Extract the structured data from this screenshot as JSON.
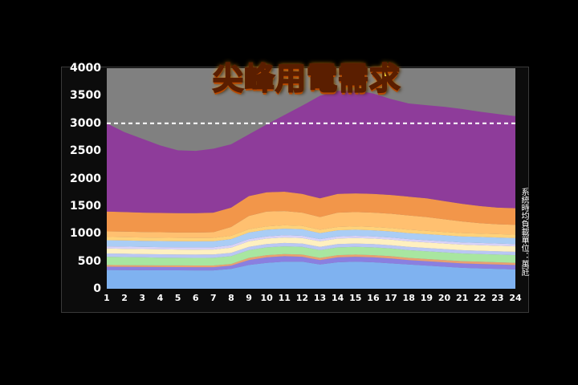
{
  "chart_data": {
    "type": "area",
    "title": "尖峰用電需求",
    "unit_label": "系統時均負載單位：萬瓩",
    "x": [
      1,
      2,
      3,
      4,
      5,
      6,
      7,
      8,
      9,
      10,
      11,
      12,
      13,
      14,
      15,
      16,
      17,
      18,
      19,
      20,
      21,
      22,
      23,
      24
    ],
    "ylim": [
      0,
      4000
    ],
    "yticks": [
      0,
      500,
      1000,
      1500,
      2000,
      2500,
      3000,
      3500,
      4000
    ],
    "reference_line": 3000,
    "grid": false,
    "stacked_totals": [
      [
        340,
        338,
        336,
        335,
        334,
        333,
        333,
        360,
        430,
        470,
        490,
        490,
        440,
        480,
        490,
        480,
        460,
        440,
        420,
        400,
        380,
        370,
        360,
        350
      ],
      [
        400,
        398,
        396,
        394,
        393,
        392,
        392,
        420,
        520,
        570,
        590,
        580,
        520,
        570,
        580,
        570,
        550,
        520,
        500,
        480,
        460,
        450,
        440,
        430
      ],
      [
        430,
        428,
        426,
        424,
        423,
        422,
        422,
        450,
        560,
        610,
        630,
        620,
        560,
        610,
        620,
        610,
        590,
        560,
        540,
        520,
        500,
        490,
        480,
        470
      ],
      [
        580,
        575,
        570,
        565,
        562,
        560,
        562,
        590,
        700,
        750,
        770,
        760,
        700,
        750,
        760,
        750,
        730,
        700,
        680,
        660,
        640,
        630,
        620,
        610
      ],
      [
        640,
        635,
        630,
        625,
        622,
        620,
        622,
        650,
        760,
        810,
        830,
        820,
        760,
        810,
        820,
        810,
        790,
        760,
        740,
        720,
        700,
        690,
        680,
        670
      ],
      [
        730,
        725,
        720,
        715,
        712,
        710,
        712,
        745,
        860,
        910,
        930,
        920,
        860,
        910,
        920,
        910,
        890,
        860,
        840,
        820,
        800,
        790,
        780,
        770
      ],
      [
        770,
        765,
        760,
        755,
        752,
        750,
        752,
        790,
        900,
        950,
        970,
        960,
        900,
        950,
        960,
        950,
        930,
        900,
        880,
        860,
        840,
        830,
        820,
        810
      ],
      [
        880,
        875,
        870,
        865,
        862,
        860,
        862,
        900,
        1020,
        1070,
        1090,
        1080,
        1010,
        1060,
        1070,
        1060,
        1040,
        1010,
        990,
        970,
        950,
        940,
        930,
        920
      ],
      [
        940,
        935,
        930,
        925,
        922,
        920,
        922,
        960,
        1080,
        1130,
        1150,
        1140,
        1070,
        1120,
        1130,
        1120,
        1100,
        1070,
        1050,
        1030,
        1010,
        1000,
        990,
        980
      ],
      [
        1040,
        1035,
        1030,
        1025,
        1020,
        1020,
        1025,
        1120,
        1320,
        1400,
        1410,
        1380,
        1300,
        1380,
        1390,
        1380,
        1360,
        1330,
        1300,
        1260,
        1220,
        1190,
        1170,
        1160
      ],
      [
        1400,
        1390,
        1380,
        1375,
        1372,
        1370,
        1380,
        1470,
        1680,
        1750,
        1760,
        1720,
        1640,
        1720,
        1730,
        1720,
        1700,
        1670,
        1640,
        1590,
        1540,
        1500,
        1470,
        1460
      ],
      [
        3000,
        2840,
        2720,
        2600,
        2510,
        2500,
        2540,
        2620,
        2800,
        2980,
        3150,
        3320,
        3500,
        3590,
        3600,
        3540,
        3440,
        3360,
        3330,
        3300,
        3260,
        3210,
        3170,
        3130
      ]
    ],
    "layer_colors": [
      "#7fb2f0",
      "#8a7fe0",
      "#e9a070",
      "#a8e6a0",
      "#b9c7f4",
      "#fff0c0",
      "#d8d2f8",
      "#aacdf5",
      "#ffd27a",
      "#ffc070",
      "#f2964a",
      "#8e3c9a"
    ],
    "peak_fill": "#9147a6",
    "background_above": "#808080"
  }
}
